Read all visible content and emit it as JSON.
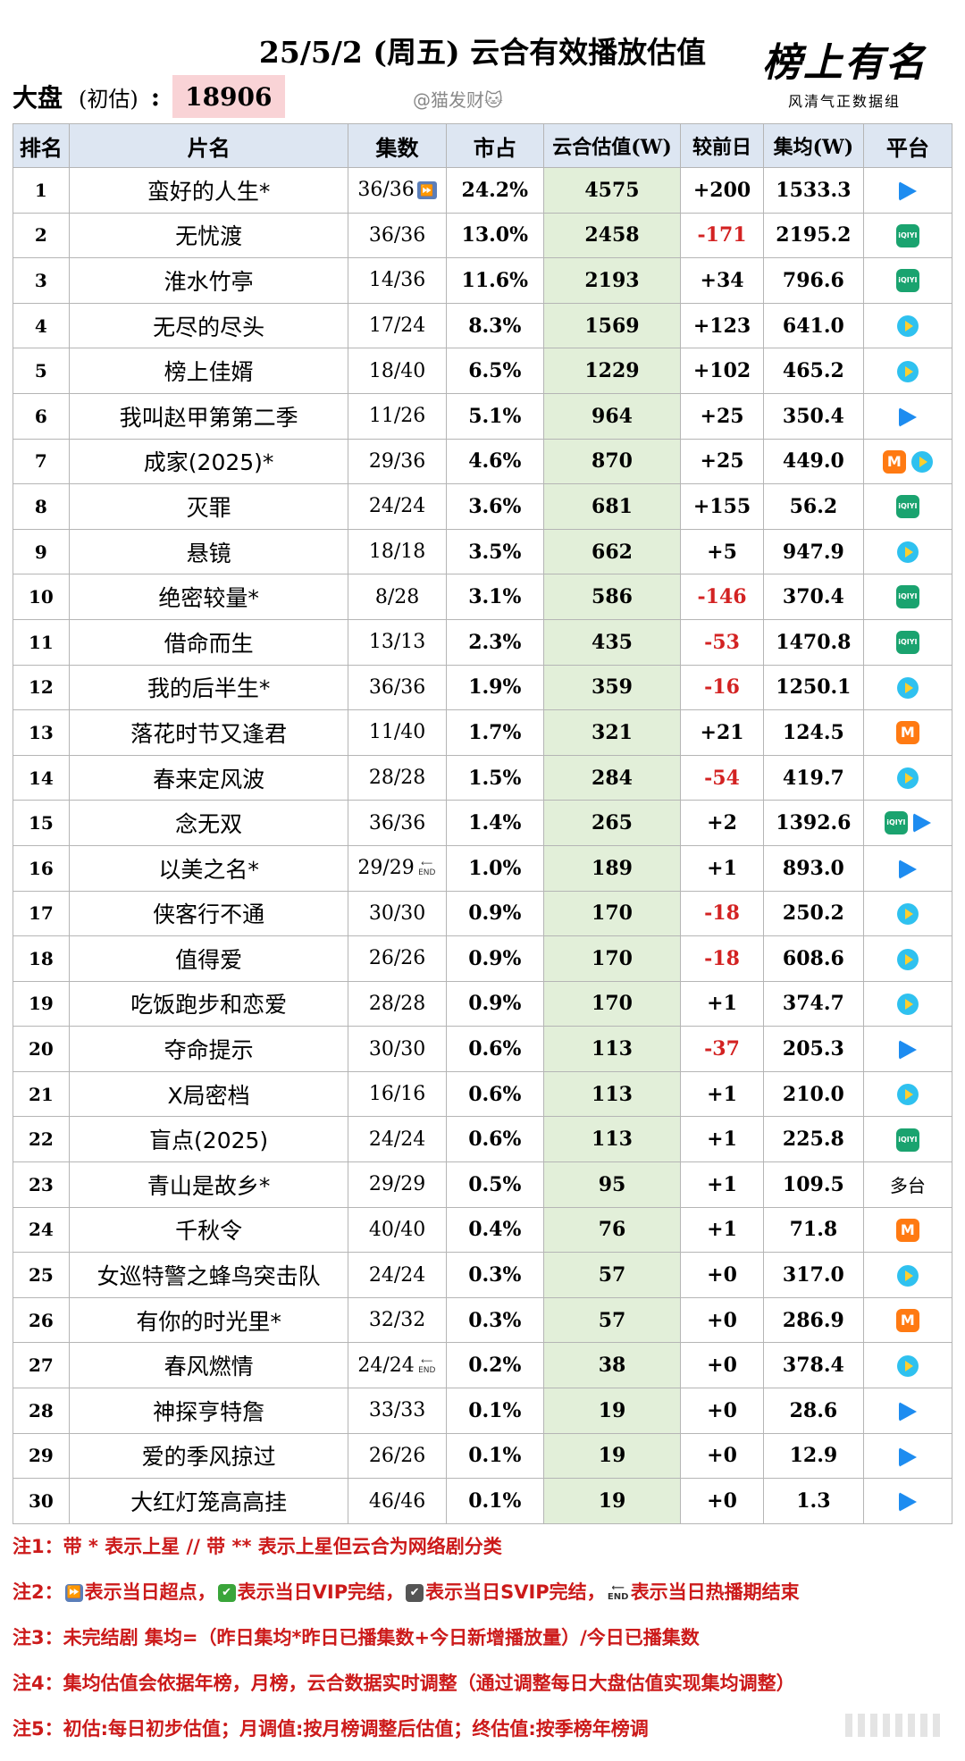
{
  "header": {
    "title": "25/5/2 (周五) 云合有效播放估值",
    "dapan_label": "大盘",
    "dapan_sub": "(初估)",
    "dapan_colon": ":",
    "dapan_value": "18906",
    "credit": "@猫发财🐱",
    "logo_script": "榜上有名",
    "logo_tagline": "风清气正数据组"
  },
  "columns": [
    "排名",
    "片名",
    "集数",
    "市占",
    "云合估值(W)",
    "较前日",
    "集均(W)",
    "平台"
  ],
  "rows": [
    {
      "rank": "1",
      "name": "蛮好的人生*",
      "eps": "36/36",
      "badge": "super",
      "share": "24.2%",
      "est": "4575",
      "chg": "+200",
      "neg": false,
      "avg": "1533.3",
      "plat": [
        "tencent"
      ]
    },
    {
      "rank": "2",
      "name": "无忧渡",
      "eps": "36/36",
      "badge": "",
      "share": "13.0%",
      "est": "2458",
      "chg": "-171",
      "neg": true,
      "avg": "2195.2",
      "plat": [
        "iqiyi"
      ]
    },
    {
      "rank": "3",
      "name": "淮水竹亭",
      "eps": "14/36",
      "badge": "",
      "share": "11.6%",
      "est": "2193",
      "chg": "+34",
      "neg": false,
      "avg": "796.6",
      "plat": [
        "iqiyi"
      ]
    },
    {
      "rank": "4",
      "name": "无尽的尽头",
      "eps": "17/24",
      "badge": "",
      "share": "8.3%",
      "est": "1569",
      "chg": "+123",
      "neg": false,
      "avg": "641.0",
      "plat": [
        "youku"
      ]
    },
    {
      "rank": "5",
      "name": "榜上佳婿",
      "eps": "18/40",
      "badge": "",
      "share": "6.5%",
      "est": "1229",
      "chg": "+102",
      "neg": false,
      "avg": "465.2",
      "plat": [
        "youku"
      ]
    },
    {
      "rank": "6",
      "name": "我叫赵甲第第二季",
      "eps": "11/26",
      "badge": "",
      "share": "5.1%",
      "est": "964",
      "chg": "+25",
      "neg": false,
      "avg": "350.4",
      "plat": [
        "tencent"
      ]
    },
    {
      "rank": "7",
      "name": "成家(2025)*",
      "eps": "29/36",
      "badge": "",
      "share": "4.6%",
      "est": "870",
      "chg": "+25",
      "neg": false,
      "avg": "449.0",
      "plat": [
        "mango",
        "youku"
      ]
    },
    {
      "rank": "8",
      "name": "灭罪",
      "eps": "24/24",
      "badge": "",
      "share": "3.6%",
      "est": "681",
      "chg": "+155",
      "neg": false,
      "avg": "56.2",
      "plat": [
        "iqiyi"
      ]
    },
    {
      "rank": "9",
      "name": "悬镜",
      "eps": "18/18",
      "badge": "",
      "share": "3.5%",
      "est": "662",
      "chg": "+5",
      "neg": false,
      "avg": "947.9",
      "plat": [
        "youku"
      ]
    },
    {
      "rank": "10",
      "name": "绝密较量*",
      "eps": "8/28",
      "badge": "",
      "share": "3.1%",
      "est": "586",
      "chg": "-146",
      "neg": true,
      "avg": "370.4",
      "plat": [
        "iqiyi"
      ]
    },
    {
      "rank": "11",
      "name": "借命而生",
      "eps": "13/13",
      "badge": "",
      "share": "2.3%",
      "est": "435",
      "chg": "-53",
      "neg": true,
      "avg": "1470.8",
      "plat": [
        "iqiyi"
      ]
    },
    {
      "rank": "12",
      "name": "我的后半生*",
      "eps": "36/36",
      "badge": "",
      "share": "1.9%",
      "est": "359",
      "chg": "-16",
      "neg": true,
      "avg": "1250.1",
      "plat": [
        "youku"
      ]
    },
    {
      "rank": "13",
      "name": "落花时节又逢君",
      "eps": "11/40",
      "badge": "",
      "share": "1.7%",
      "est": "321",
      "chg": "+21",
      "neg": false,
      "avg": "124.5",
      "plat": [
        "mango"
      ]
    },
    {
      "rank": "14",
      "name": "春来定风波",
      "eps": "28/28",
      "badge": "",
      "share": "1.5%",
      "est": "284",
      "chg": "-54",
      "neg": true,
      "avg": "419.7",
      "plat": [
        "youku"
      ]
    },
    {
      "rank": "15",
      "name": "念无双",
      "eps": "36/36",
      "badge": "",
      "share": "1.4%",
      "est": "265",
      "chg": "+2",
      "neg": false,
      "avg": "1392.6",
      "plat": [
        "iqiyi",
        "tencent"
      ]
    },
    {
      "rank": "16",
      "name": "以美之名*",
      "eps": "29/29",
      "badge": "end",
      "share": "1.0%",
      "est": "189",
      "chg": "+1",
      "neg": false,
      "avg": "893.0",
      "plat": [
        "tencent"
      ]
    },
    {
      "rank": "17",
      "name": "侠客行不通",
      "eps": "30/30",
      "badge": "",
      "share": "0.9%",
      "est": "170",
      "chg": "-18",
      "neg": true,
      "avg": "250.2",
      "plat": [
        "youku"
      ]
    },
    {
      "rank": "18",
      "name": "值得爱",
      "eps": "26/26",
      "badge": "",
      "share": "0.9%",
      "est": "170",
      "chg": "-18",
      "neg": true,
      "avg": "608.6",
      "plat": [
        "youku"
      ]
    },
    {
      "rank": "19",
      "name": "吃饭跑步和恋爱",
      "eps": "28/28",
      "badge": "",
      "share": "0.9%",
      "est": "170",
      "chg": "+1",
      "neg": false,
      "avg": "374.7",
      "plat": [
        "youku"
      ]
    },
    {
      "rank": "20",
      "name": "夺命提示",
      "eps": "30/30",
      "badge": "",
      "share": "0.6%",
      "est": "113",
      "chg": "-37",
      "neg": true,
      "avg": "205.3",
      "plat": [
        "tencent"
      ]
    },
    {
      "rank": "21",
      "name": "X局密档",
      "eps": "16/16",
      "badge": "",
      "share": "0.6%",
      "est": "113",
      "chg": "+1",
      "neg": false,
      "avg": "210.0",
      "plat": [
        "youku"
      ]
    },
    {
      "rank": "22",
      "name": "盲点(2025)",
      "eps": "24/24",
      "badge": "",
      "share": "0.6%",
      "est": "113",
      "chg": "+1",
      "neg": false,
      "avg": "225.8",
      "plat": [
        "iqiyi"
      ]
    },
    {
      "rank": "23",
      "name": "青山是故乡*",
      "eps": "29/29",
      "badge": "",
      "share": "0.5%",
      "est": "95",
      "chg": "+1",
      "neg": false,
      "avg": "109.5",
      "plat": [],
      "plat_text": "多台"
    },
    {
      "rank": "24",
      "name": "千秋令",
      "eps": "40/40",
      "badge": "",
      "share": "0.4%",
      "est": "76",
      "chg": "+1",
      "neg": false,
      "avg": "71.8",
      "plat": [
        "mango"
      ]
    },
    {
      "rank": "25",
      "name": "女巡特警之蜂鸟突击队",
      "eps": "24/24",
      "badge": "",
      "share": "0.3%",
      "est": "57",
      "chg": "+0",
      "neg": false,
      "avg": "317.0",
      "plat": [
        "youku"
      ]
    },
    {
      "rank": "26",
      "name": "有你的时光里*",
      "eps": "32/32",
      "badge": "",
      "share": "0.3%",
      "est": "57",
      "chg": "+0",
      "neg": false,
      "avg": "286.9",
      "plat": [
        "mango"
      ]
    },
    {
      "rank": "27",
      "name": "春风燃情",
      "eps": "24/24",
      "badge": "end",
      "share": "0.2%",
      "est": "38",
      "chg": "+0",
      "neg": false,
      "avg": "378.4",
      "plat": [
        "youku"
      ]
    },
    {
      "rank": "28",
      "name": "神探亨特詹",
      "eps": "33/33",
      "badge": "",
      "share": "0.1%",
      "est": "19",
      "chg": "+0",
      "neg": false,
      "avg": "28.6",
      "plat": [
        "tencent"
      ]
    },
    {
      "rank": "29",
      "name": "爱的季风掠过",
      "eps": "26/26",
      "badge": "",
      "share": "0.1%",
      "est": "19",
      "chg": "+0",
      "neg": false,
      "avg": "12.9",
      "plat": [
        "tencent"
      ]
    },
    {
      "rank": "30",
      "name": "大红灯笼高高挂",
      "eps": "46/46",
      "badge": "",
      "share": "0.1%",
      "est": "19",
      "chg": "+0",
      "neg": false,
      "avg": "1.3",
      "plat": [
        "tencent"
      ]
    }
  ],
  "platform_icons": {
    "tencent": "tencent-video-icon",
    "youku": "youku-icon",
    "iqiyi": "iqiyi-icon",
    "mango": "mango-tv-icon"
  },
  "platform_icon_text": {
    "iqiyi": "iQIYI",
    "mango": "M"
  },
  "colors": {
    "header_bg": "#dde6f2",
    "estimate_bg": "#e2efd9",
    "negative": "#d32222",
    "note_red": "#cc1a1a",
    "dapan_bg": "#f9d3d6"
  },
  "notes": {
    "n1": "注1：带 * 表示上星 // 带 ** 表示上星但云合为网络剧分类",
    "n2_a": "注2：",
    "n2_b": "表示当日超点，",
    "n2_c": "表示当日VIP完结，",
    "n2_d": "表示当日SVIP完结，",
    "n2_e": "表示当日热播期结束",
    "n3": "注3：未完结剧 集均=（昨日集均*昨日已播集数+今日新增播放量）/今日已播集数",
    "n4": "注4：集均估值会依据年榜，月榜，云合数据实时调整（通过调整每日大盘估值实现集均调整）",
    "n5": "注5：初估:每日初步估值；月调值:按月榜调整后估值；终估值:按季榜年榜调"
  }
}
